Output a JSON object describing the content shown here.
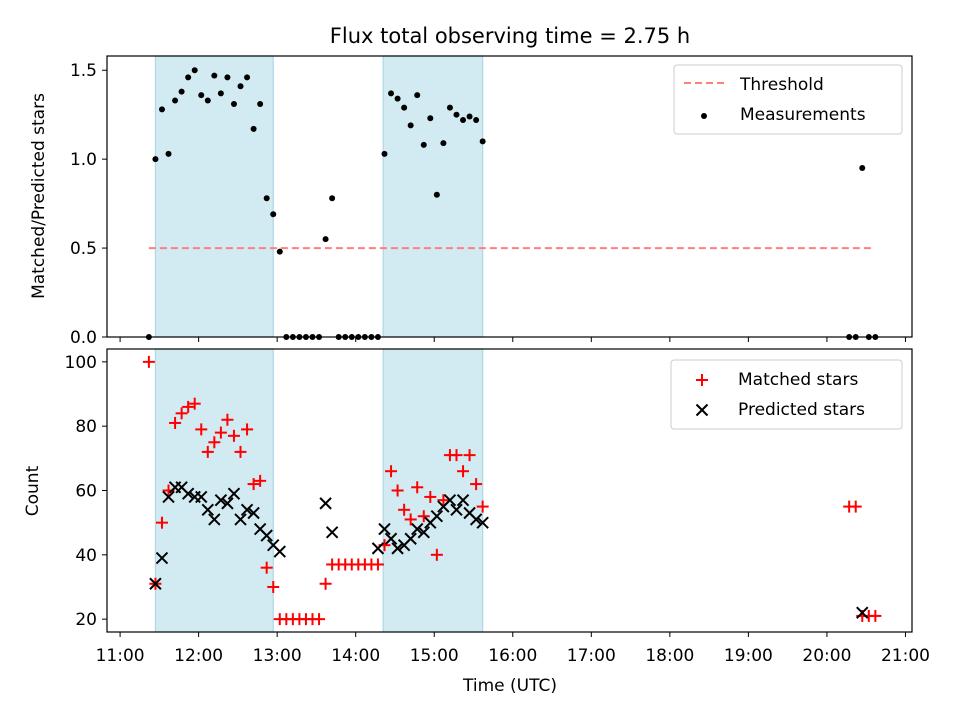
{
  "figure": {
    "title": "Flux total observing time = 2.75 h",
    "xlabel": "Time (UTC)"
  },
  "colors": {
    "shade": "#add8e6",
    "threshold": "#ff7f7f",
    "measurement": "#000000",
    "matched": "#ff0000",
    "predicted": "#000000"
  },
  "chart_data": [
    {
      "type": "scatter",
      "ylabel": "Matched/Predicted stars",
      "xlim": [
        "10:50",
        "21:05"
      ],
      "ylim": [
        0,
        1.58
      ],
      "yticks": [
        0.0,
        0.5,
        1.0,
        1.5
      ],
      "ytick_labels": [
        "0.0",
        "0.5",
        "1.0",
        "1.5"
      ],
      "legend_position": "top-right",
      "shaded_intervals": [
        [
          "11:27",
          "12:57"
        ],
        [
          "14:21",
          "15:37"
        ]
      ],
      "threshold": {
        "name": "Threshold",
        "value": 0.5,
        "x_range": [
          "11:22",
          "20:35"
        ],
        "style": "dashed"
      },
      "series": [
        {
          "name": "Measurements",
          "marker": "dot",
          "x": [
            "11:22",
            "11:27",
            "11:32",
            "11:37",
            "11:42",
            "11:47",
            "11:52",
            "11:57",
            "12:02",
            "12:07",
            "12:12",
            "12:17",
            "12:22",
            "12:27",
            "12:32",
            "12:37",
            "12:42",
            "12:47",
            "12:52",
            "12:57",
            "13:02",
            "13:07",
            "13:12",
            "13:17",
            "13:22",
            "13:27",
            "13:32",
            "13:37",
            "13:42",
            "13:47",
            "13:52",
            "13:57",
            "14:02",
            "14:07",
            "14:12",
            "14:17",
            "14:22",
            "14:27",
            "14:32",
            "14:37",
            "14:42",
            "14:47",
            "14:52",
            "14:57",
            "15:02",
            "15:07",
            "15:12",
            "15:17",
            "15:22",
            "15:27",
            "15:32",
            "15:37",
            "20:17",
            "20:22",
            "20:27",
            "20:32",
            "20:37"
          ],
          "y": [
            0,
            1.0,
            1.28,
            1.03,
            1.33,
            1.38,
            1.46,
            1.5,
            1.36,
            1.33,
            1.47,
            1.37,
            1.46,
            1.31,
            1.41,
            1.46,
            1.17,
            1.31,
            0.78,
            0.69,
            0.48,
            0,
            0,
            0,
            0,
            0,
            0,
            0.55,
            0.78,
            0,
            0,
            0,
            0,
            0,
            0,
            0,
            1.03,
            1.37,
            1.34,
            1.29,
            1.19,
            1.36,
            1.08,
            1.23,
            0.8,
            1.09,
            1.29,
            1.25,
            1.22,
            1.24,
            1.22,
            1.1,
            0,
            0,
            0.95,
            0,
            0
          ]
        }
      ]
    },
    {
      "type": "scatter",
      "ylabel": "Count",
      "xlim": [
        "10:50",
        "21:05"
      ],
      "ylim": [
        16,
        104
      ],
      "yticks": [
        20,
        40,
        60,
        80,
        100
      ],
      "ytick_labels": [
        "20",
        "40",
        "60",
        "80",
        "100"
      ],
      "xtick_labels": [
        "11:00",
        "12:00",
        "13:00",
        "14:00",
        "15:00",
        "16:00",
        "17:00",
        "18:00",
        "19:00",
        "20:00",
        "21:00"
      ],
      "legend_position": "top-right",
      "shaded_intervals": [
        [
          "11:27",
          "12:57"
        ],
        [
          "14:21",
          "15:37"
        ]
      ],
      "series": [
        {
          "name": "Matched stars",
          "marker": "plus",
          "x": [
            "11:22",
            "11:27",
            "11:32",
            "11:37",
            "11:42",
            "11:47",
            "11:52",
            "11:57",
            "12:02",
            "12:07",
            "12:12",
            "12:17",
            "12:22",
            "12:27",
            "12:32",
            "12:37",
            "12:42",
            "12:47",
            "12:52",
            "12:57",
            "13:02",
            "13:07",
            "13:12",
            "13:17",
            "13:22",
            "13:27",
            "13:32",
            "13:37",
            "13:42",
            "13:47",
            "13:52",
            "13:57",
            "14:02",
            "14:07",
            "14:12",
            "14:17",
            "14:22",
            "14:27",
            "14:32",
            "14:37",
            "14:42",
            "14:47",
            "14:52",
            "14:57",
            "15:02",
            "15:07",
            "15:12",
            "15:17",
            "15:22",
            "15:27",
            "15:32",
            "15:37",
            "20:17",
            "20:22",
            "20:27",
            "20:32",
            "20:37"
          ],
          "y": [
            100,
            31,
            50,
            60,
            81,
            84,
            86,
            87,
            79,
            72,
            75,
            78,
            82,
            77,
            72,
            79,
            62,
            63,
            36,
            30,
            20,
            20,
            20,
            20,
            20,
            20,
            20,
            31,
            37,
            37,
            37,
            37,
            37,
            37,
            37,
            37,
            43,
            66,
            60,
            54,
            51,
            61,
            52,
            58,
            40,
            57,
            71,
            71,
            66,
            71,
            62,
            55,
            55,
            55,
            21,
            21,
            21
          ]
        },
        {
          "name": "Predicted stars",
          "marker": "x",
          "x": [
            "11:27",
            "11:32",
            "11:37",
            "11:42",
            "11:47",
            "11:52",
            "11:57",
            "12:02",
            "12:07",
            "12:12",
            "12:17",
            "12:22",
            "12:27",
            "12:32",
            "12:37",
            "12:42",
            "12:47",
            "12:52",
            "12:57",
            "13:02",
            "13:37",
            "13:42",
            "14:17",
            "14:22",
            "14:27",
            "14:32",
            "14:37",
            "14:42",
            "14:47",
            "14:52",
            "14:57",
            "15:02",
            "15:07",
            "15:12",
            "15:17",
            "15:22",
            "15:27",
            "15:32",
            "15:37",
            "20:27"
          ],
          "y": [
            31,
            39,
            58,
            61,
            61,
            59,
            58,
            58,
            54,
            51,
            57,
            56,
            59,
            51,
            54,
            53,
            48,
            46,
            43,
            41,
            56,
            47,
            42,
            48,
            45,
            42,
            43,
            45,
            48,
            47,
            50,
            52,
            55,
            57,
            54,
            57,
            53,
            51,
            50,
            22
          ]
        }
      ]
    }
  ]
}
